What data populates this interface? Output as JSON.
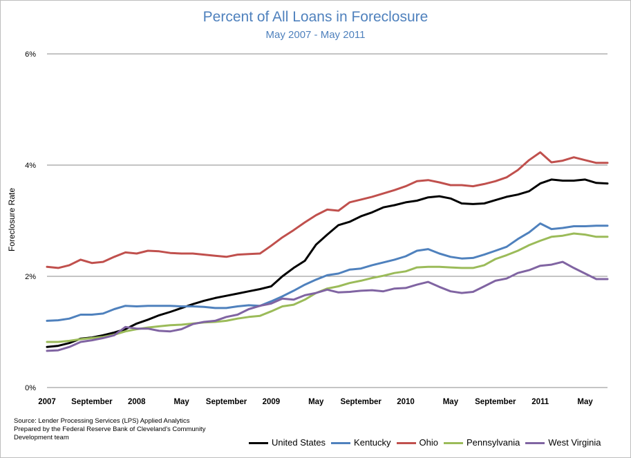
{
  "chart_data": {
    "type": "line",
    "title": "Percent of All Loans in Foreclosure",
    "subtitle": "May 2007 - May 2011",
    "ylabel": "Foreclosure Rate",
    "xlabel": "",
    "ylim": [
      0,
      6
    ],
    "yticks": [
      "0%",
      "2%",
      "4%",
      "6%"
    ],
    "x_tick_labels": [
      "2007",
      "September",
      "2008",
      "May",
      "September",
      "2009",
      "May",
      "September",
      "2010",
      "May",
      "September",
      "2011",
      "May"
    ],
    "x_tick_index": [
      0,
      4,
      8,
      12,
      16,
      20,
      24,
      28,
      32,
      36,
      40,
      44,
      48
    ],
    "grid": "horizontal",
    "legend_position": "bottom",
    "series": [
      {
        "name": "United States",
        "color": "#000000",
        "values": [
          0.73,
          0.75,
          0.8,
          0.88,
          0.9,
          0.94,
          0.99,
          1.05,
          1.15,
          1.22,
          1.3,
          1.36,
          1.43,
          1.5,
          1.56,
          1.61,
          1.65,
          1.69,
          1.73,
          1.77,
          1.82,
          2.0,
          2.15,
          2.28,
          2.57,
          2.75,
          2.92,
          2.98,
          3.08,
          3.15,
          3.24,
          3.28,
          3.33,
          3.36,
          3.42,
          3.44,
          3.4,
          3.31,
          3.3,
          3.31,
          3.37,
          3.43,
          3.47,
          3.53,
          3.67,
          3.74,
          3.72,
          3.72,
          3.74,
          3.68,
          3.67
        ]
      },
      {
        "name": "Kentucky",
        "color": "#4f81bd",
        "values": [
          1.2,
          1.21,
          1.24,
          1.31,
          1.31,
          1.33,
          1.41,
          1.47,
          1.46,
          1.47,
          1.47,
          1.47,
          1.46,
          1.46,
          1.45,
          1.43,
          1.43,
          1.46,
          1.48,
          1.47,
          1.55,
          1.64,
          1.74,
          1.85,
          1.94,
          2.02,
          2.05,
          2.12,
          2.14,
          2.2,
          2.25,
          2.3,
          2.36,
          2.46,
          2.49,
          2.41,
          2.35,
          2.32,
          2.33,
          2.39,
          2.46,
          2.53,
          2.67,
          2.79,
          2.95,
          2.85,
          2.87,
          2.9,
          2.9,
          2.91,
          2.91
        ]
      },
      {
        "name": "Ohio",
        "color": "#c0504d",
        "values": [
          2.17,
          2.15,
          2.2,
          2.3,
          2.24,
          2.26,
          2.35,
          2.43,
          2.41,
          2.46,
          2.45,
          2.42,
          2.41,
          2.41,
          2.39,
          2.37,
          2.35,
          2.39,
          2.4,
          2.41,
          2.55,
          2.7,
          2.83,
          2.97,
          3.1,
          3.2,
          3.18,
          3.33,
          3.38,
          3.43,
          3.49,
          3.55,
          3.62,
          3.71,
          3.73,
          3.69,
          3.64,
          3.64,
          3.62,
          3.66,
          3.71,
          3.78,
          3.91,
          4.09,
          4.23,
          4.05,
          4.08,
          4.14,
          4.09,
          4.04,
          4.04
        ]
      },
      {
        "name": "Pennsylvania",
        "color": "#9bbb59",
        "values": [
          0.82,
          0.82,
          0.84,
          0.87,
          0.89,
          0.91,
          0.95,
          1.01,
          1.05,
          1.08,
          1.1,
          1.12,
          1.13,
          1.15,
          1.17,
          1.18,
          1.2,
          1.24,
          1.27,
          1.29,
          1.37,
          1.46,
          1.49,
          1.58,
          1.7,
          1.78,
          1.82,
          1.88,
          1.92,
          1.97,
          2.01,
          2.06,
          2.09,
          2.16,
          2.17,
          2.17,
          2.16,
          2.15,
          2.15,
          2.2,
          2.31,
          2.38,
          2.46,
          2.56,
          2.64,
          2.71,
          2.73,
          2.77,
          2.75,
          2.71,
          2.71
        ]
      },
      {
        "name": "West Virginia",
        "color": "#8064a2",
        "values": [
          0.66,
          0.67,
          0.73,
          0.82,
          0.85,
          0.89,
          0.94,
          1.09,
          1.06,
          1.06,
          1.02,
          1.01,
          1.05,
          1.14,
          1.18,
          1.2,
          1.27,
          1.31,
          1.41,
          1.47,
          1.51,
          1.6,
          1.58,
          1.66,
          1.7,
          1.76,
          1.71,
          1.72,
          1.74,
          1.75,
          1.73,
          1.78,
          1.79,
          1.85,
          1.9,
          1.81,
          1.73,
          1.7,
          1.72,
          1.82,
          1.92,
          1.96,
          2.06,
          2.11,
          2.19,
          2.21,
          2.26,
          2.15,
          2.05,
          1.95,
          1.95
        ]
      }
    ],
    "source_lines": [
      "Source: Lender Processing Services (LPS) Applied Analytics",
      "Prepared by the Federal Reserve Bank of Cleveland's Community",
      "Development team"
    ]
  }
}
